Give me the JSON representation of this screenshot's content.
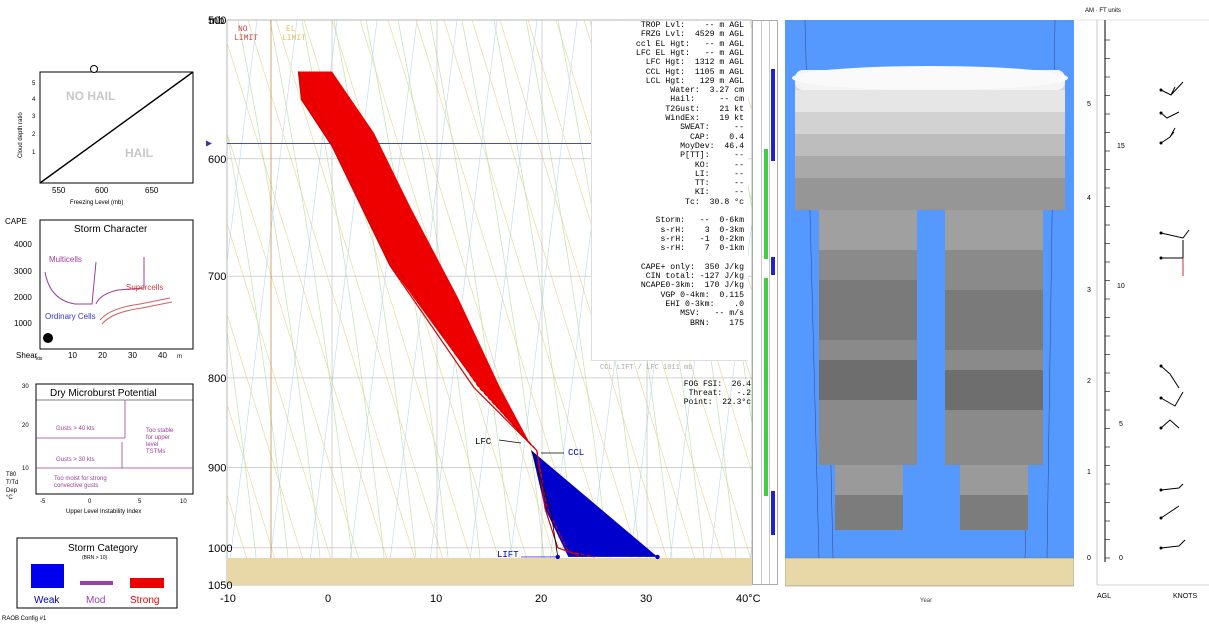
{
  "hail_chart": {
    "ylabel": "Cloud depth ratio",
    "xlabel": "Freezing Level (mb)",
    "x_ticks": [
      "550",
      "600",
      "650"
    ],
    "y_ticks": [
      "1",
      "2",
      "3",
      "4",
      "5"
    ],
    "no_hail_label": "NO HAIL",
    "hail_label": "HAIL"
  },
  "storm_character": {
    "title": "Storm Character",
    "ylabel": "CAPE",
    "y_ticks": [
      "4000",
      "3000",
      "2000",
      "1000"
    ],
    "x_ticks": [
      "10",
      "20",
      "30",
      "40"
    ],
    "x_label": "Shear",
    "x_sub": "kts",
    "x_unit": "m",
    "multicells": "Multicells",
    "supercells": "Supercells",
    "ordinary": "Ordinary Cells"
  },
  "microburst": {
    "title": "Dry Microburst Potential",
    "y_ticks": [
      "30",
      "20",
      "10"
    ],
    "y_labels": [
      "T80",
      "T/Td",
      "Dep",
      "°C"
    ],
    "x_ticks": [
      "-5",
      "0",
      "5",
      "10"
    ],
    "xlabel": "Upper Level Instability Index",
    "gusts40": "Gusts > 40 kts",
    "gusts30": "Gusts > 30 kts",
    "too_stable": "Too stable for upper level TSTMs",
    "too_moist": "Too moist for strong convective gusts"
  },
  "storm_category": {
    "title": "Storm Category",
    "subtitle": "(BRN > 10)",
    "weak": "Weak",
    "mod": "Mod",
    "strong": "Strong",
    "config": "RAOB Config #1"
  },
  "skewt": {
    "unit_label": "mb",
    "pressure_ticks": [
      "500",
      "600",
      "700",
      "800",
      "900",
      "1000",
      "1050"
    ],
    "temp_ticks": [
      "-10",
      "0",
      "10",
      "20",
      "30",
      "40°C"
    ],
    "no_lim_label": [
      "NO",
      "LIMIT"
    ],
    "top_label": [
      "EL",
      "LIMIT"
    ],
    "lfc_label": "LFC",
    "ccl_label": "CCL",
    "lift_label": "LIFT",
    "stats": [
      "TROP Lvl:    -- m AGL",
      "FRZG Lvl:  4529 m AGL",
      "ccl EL Hgt:   -- m AGL",
      "LFC EL Hgt:   -- m AGL",
      "LFC Hgt:  1312 m AGL",
      "CCL Hgt:  1105 m AGL",
      "LCL Hgt:   129 m AGL",
      "Water:  3.27 cm",
      "Hail:     -- cm",
      "T2Gust:    21 kt",
      "WindEx:    19 kt",
      "SWEAT:     --",
      "CAP:    0.4",
      "MoyDev:  46.4",
      "P[TT]:     --",
      "KO:     --",
      "LI:     --",
      "TT:     --",
      "KI:     --",
      "Tc:  30.8 °c",
      "",
      "Storm:   --  0-6km",
      "s-rH:    3  0-3km",
      "s-rH:   -1  0-2km",
      "s-rH:    7  0-1km",
      "",
      "CAPE+ only:  350 J/kg",
      "CIN total: -127 J/kg",
      "NCAPE0-3km:  170 J/kg",
      "VGP 0-4km:  0.115",
      "EHI 0-3km:    .0",
      "MSV:   -- m/s",
      "BRN:    175"
    ],
    "ccl_lift_note": "CCL LIFT / LFC 1011 mb",
    "fog_lines": [
      "FOG FSI:  26.4",
      "Threat:   -.2",
      "Point:  22.3°c"
    ]
  },
  "cloud_panel": {
    "bottom_label": "Year"
  },
  "wind_panel": {
    "header": "AM · FT units",
    "agl_ticks": [
      "5",
      "4",
      "3",
      "2",
      "1",
      "0"
    ],
    "ft_ticks": [
      "15",
      "10",
      "5",
      "0"
    ],
    "agl_label": "AGL",
    "knots_label": "KNOTS"
  },
  "colors": {
    "cape_red": "#ee0000",
    "cin_blue": "#0000cc",
    "sky_blue": "#5599ff",
    "ground_tan": "#e8d8a8",
    "green_bar": "#44cc44"
  },
  "chart_data": {
    "type": "line",
    "title": "",
    "xlabel": "",
    "ylabel": "mb",
    "xlim": [
      -10,
      40
    ],
    "ylim": [
      1050,
      500
    ],
    "series": [
      {
        "name": "",
        "points": [
          [
            -3.2,
            535
          ],
          [
            -2.9,
            555
          ],
          [
            0,
            590
          ],
          [
            5.5,
            690
          ],
          [
            13.5,
            810
          ],
          [
            19.5,
            880
          ],
          [
            20.3,
            950
          ],
          [
            21.5,
            1000
          ],
          [
            23.5,
            1010
          ]
        ]
      },
      {
        "name": "",
        "points": [
          [
            -3.2,
            535
          ],
          [
            -1.9,
            555
          ],
          [
            0.4,
            590
          ],
          [
            6,
            690
          ],
          [
            14,
            810
          ],
          [
            19.5,
            880
          ],
          [
            20.5,
            950
          ],
          [
            22.5,
            1005
          ],
          [
            25,
            1012
          ]
        ]
      }
    ],
    "cape_area": [
      [
        -3.2,
        535
      ],
      [
        0,
        535
      ],
      [
        4,
        580
      ],
      [
        7.5,
        640
      ],
      [
        12,
        720
      ],
      [
        16,
        810
      ],
      [
        19,
        875
      ],
      [
        14,
        810
      ],
      [
        5.5,
        690
      ],
      [
        0,
        590
      ],
      [
        -2.9,
        555
      ]
    ],
    "cin_area": [
      [
        19,
        880
      ],
      [
        31,
        1012
      ],
      [
        22.5,
        1012
      ],
      [
        20.3,
        950
      ]
    ]
  }
}
